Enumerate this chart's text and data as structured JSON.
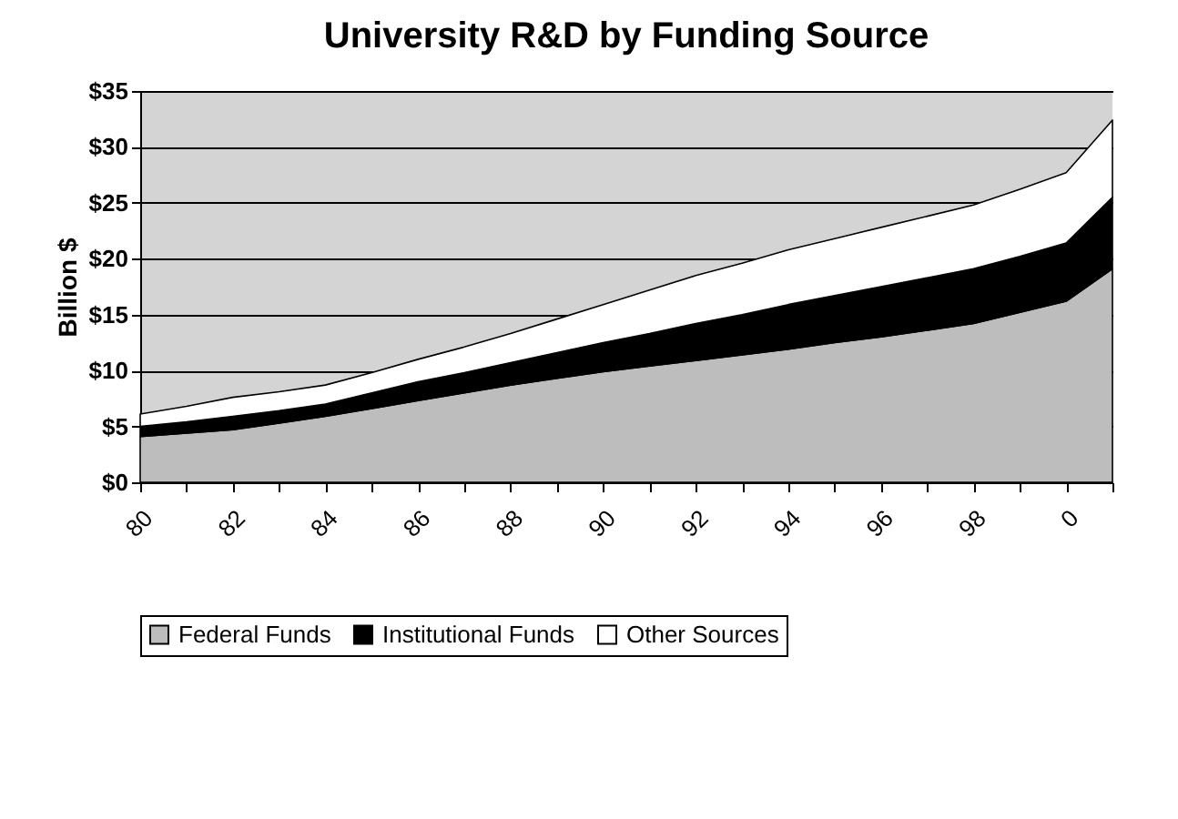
{
  "chart_data": {
    "type": "area",
    "stacked": true,
    "title": "University R&D by Funding Source",
    "ylabel": "Billion $",
    "categories": [
      "80",
      null,
      "82",
      null,
      "84",
      null,
      "86",
      null,
      "88",
      null,
      "90",
      null,
      "92",
      null,
      "94",
      null,
      "96",
      null,
      "98",
      null,
      "0",
      null
    ],
    "series": [
      {
        "name": "Federal Funds",
        "color": "#bdbdbd",
        "values": [
          4.1,
          4.4,
          4.7,
          5.3,
          5.9,
          6.6,
          7.3,
          8.0,
          8.7,
          9.3,
          9.9,
          10.4,
          10.9,
          11.4,
          11.9,
          12.5,
          13.0,
          13.6,
          14.2,
          15.2,
          16.2,
          19.1
        ]
      },
      {
        "name": "Institutional Funds",
        "color": "#000000",
        "values": [
          0.9,
          1.0,
          1.2,
          1.1,
          1.1,
          1.4,
          1.7,
          1.8,
          2.0,
          2.3,
          2.6,
          2.9,
          3.3,
          3.6,
          4.0,
          4.2,
          4.5,
          4.7,
          4.9,
          5.0,
          5.2,
          6.4
        ]
      },
      {
        "name": "Other Sources",
        "color": "#ffffff",
        "values": [
          1.1,
          1.4,
          1.7,
          1.7,
          1.7,
          1.8,
          2.0,
          2.3,
          2.6,
          3.0,
          3.4,
          3.9,
          4.3,
          4.6,
          4.9,
          5.1,
          5.3,
          5.5,
          5.7,
          6.0,
          6.3,
          6.9
        ]
      }
    ],
    "ylim": [
      0,
      35
    ],
    "yticks": [
      {
        "value": 0,
        "label": "$0"
      },
      {
        "value": 5,
        "label": "$5"
      },
      {
        "value": 10,
        "label": "$10"
      },
      {
        "value": 15,
        "label": "$15"
      },
      {
        "value": 20,
        "label": "$20"
      },
      {
        "value": 25,
        "label": "$25"
      },
      {
        "value": 30,
        "label": "$30"
      },
      {
        "value": 35,
        "label": "$35"
      }
    ],
    "grid": "y",
    "legend": "bottom"
  }
}
